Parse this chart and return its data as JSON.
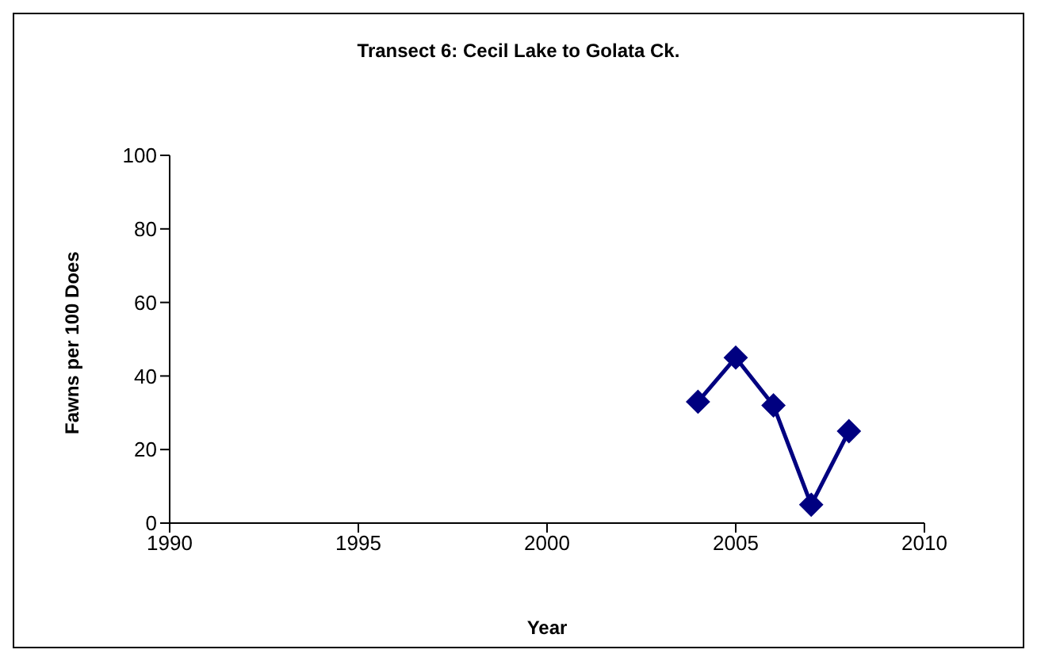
{
  "chart_data": {
    "type": "line",
    "title": "Transect 6: Cecil Lake to Golata Ck.",
    "xlabel": "Year",
    "ylabel": "Fawns per 100 Does",
    "x": [
      2004,
      2005,
      2006,
      2007,
      2008
    ],
    "series": [
      {
        "color": "#000080",
        "values": [
          33,
          45,
          32,
          5,
          25
        ]
      }
    ],
    "xlim": [
      1990,
      2010
    ],
    "xticks": [
      1990,
      1995,
      2000,
      2005,
      2010
    ],
    "ylim": [
      0,
      100
    ],
    "yticks": [
      0,
      20,
      40,
      60,
      80,
      100
    ],
    "grid": false,
    "legend": false,
    "marker": "diamond",
    "line_style": "solid"
  }
}
